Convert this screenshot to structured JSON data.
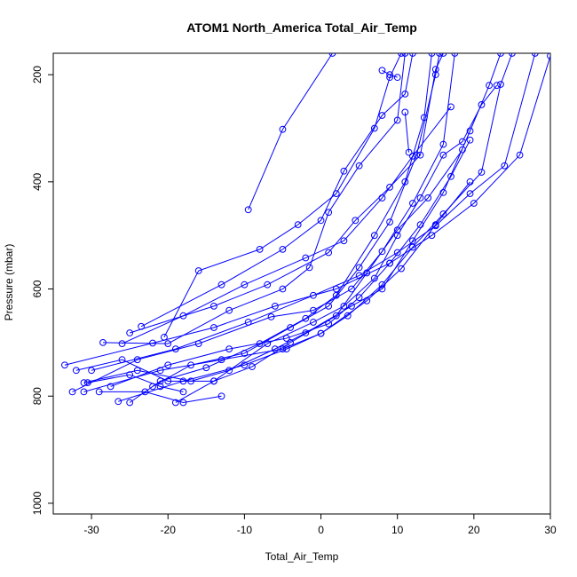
{
  "chart_data": {
    "type": "line",
    "title": "ATOM1 North_America Total_Air_Temp",
    "xlabel": "Total_Air_Temp",
    "ylabel": "Pressure (mbar)",
    "xlim": [
      -35,
      30
    ],
    "ylim": [
      1020,
      160
    ],
    "y_axis_inverted": true,
    "x_ticks": [
      -30,
      -20,
      -10,
      0,
      10,
      20,
      30
    ],
    "y_ticks": [
      200,
      400,
      600,
      800,
      1000
    ],
    "color": "#0000ff",
    "marker": "open-circle",
    "grid": false,
    "legend": "none",
    "series": [
      {
        "points": [
          [
            -9.5,
            452
          ],
          [
            -5,
            302
          ],
          [
            1.5,
            160
          ]
        ]
      },
      {
        "points": [
          [
            -33.5,
            742
          ],
          [
            -22,
            701
          ],
          [
            -14,
            672
          ],
          [
            -6,
            632
          ],
          [
            2,
            600
          ],
          [
            9,
            552
          ],
          [
            14.5,
            500
          ],
          [
            20,
            440
          ],
          [
            26,
            350
          ],
          [
            30,
            165
          ]
        ]
      },
      {
        "points": [
          [
            -30,
            752
          ],
          [
            -19,
            712
          ],
          [
            -9.5,
            662
          ],
          [
            -1,
            612
          ],
          [
            5,
            575
          ],
          [
            10,
            532
          ],
          [
            15,
            482
          ],
          [
            19.5,
            422
          ],
          [
            24,
            370
          ],
          [
            28,
            160
          ]
        ]
      },
      {
        "points": [
          [
            -32.5,
            792
          ],
          [
            -24,
            732
          ],
          [
            -16,
            702
          ],
          [
            -6.5,
            652
          ],
          [
            -1,
            640
          ],
          [
            4,
            600
          ],
          [
            8,
            530
          ],
          [
            12,
            440
          ],
          [
            16,
            330
          ],
          [
            17.5,
            160
          ]
        ]
      },
      {
        "points": [
          [
            -27.5,
            782
          ],
          [
            -20,
            742
          ],
          [
            -12,
            712
          ],
          [
            -4.5,
            692
          ],
          [
            1,
            665
          ],
          [
            5,
            616
          ],
          [
            9,
            552
          ],
          [
            13,
            480
          ],
          [
            17,
            390
          ],
          [
            19.5,
            322
          ]
        ]
      },
      {
        "points": [
          [
            -26.5,
            810
          ],
          [
            -18,
            772
          ],
          [
            -10,
            742
          ],
          [
            -4.5,
            712
          ],
          [
            0,
            683
          ],
          [
            6,
            622
          ],
          [
            10.5,
            562
          ],
          [
            15,
            480
          ],
          [
            19.5,
            400
          ]
        ]
      },
      {
        "points": [
          [
            -31,
            792
          ],
          [
            -21,
            752
          ],
          [
            -13,
            732
          ],
          [
            -5,
            712
          ],
          [
            0,
            683
          ],
          [
            3.5,
            650
          ],
          [
            8,
            592
          ],
          [
            12,
            522
          ],
          [
            16,
            460
          ],
          [
            21,
            382
          ],
          [
            23.5,
            218
          ],
          [
            25,
            160
          ]
        ]
      },
      {
        "points": [
          [
            -26,
            702
          ],
          [
            -18,
            650
          ],
          [
            -10,
            592
          ],
          [
            -2,
            542
          ],
          [
            3,
            510
          ],
          [
            8,
            430
          ],
          [
            12,
            352
          ],
          [
            17,
            260
          ]
        ]
      },
      {
        "points": [
          [
            -20.5,
            690
          ],
          [
            -16,
            566
          ],
          [
            -8,
            526
          ],
          [
            -3,
            480
          ],
          [
            2,
            422
          ],
          [
            7,
            300
          ],
          [
            9,
            205
          ],
          [
            10.5,
            160
          ]
        ]
      },
      {
        "points": [
          [
            -25,
            682
          ],
          [
            -14,
            632
          ],
          [
            -7,
            592
          ],
          [
            1,
            532
          ],
          [
            4.5,
            472
          ],
          [
            9,
            410
          ],
          [
            13,
            350
          ],
          [
            15,
            190
          ],
          [
            16,
            160
          ]
        ]
      },
      {
        "points": [
          [
            -23.5,
            670
          ],
          [
            -13,
            592
          ],
          [
            -5,
            526
          ],
          [
            0,
            472
          ],
          [
            3,
            380
          ],
          [
            8,
            276
          ],
          [
            11,
            236
          ],
          [
            12,
            160
          ]
        ]
      },
      {
        "points": [
          [
            -25,
            812
          ],
          [
            -21,
            772
          ],
          [
            -15,
            747
          ],
          [
            -8,
            702
          ],
          [
            -2,
            655
          ],
          [
            2,
            612
          ],
          [
            7,
            500
          ],
          [
            11,
            400
          ],
          [
            13.5,
            280
          ],
          [
            14.5,
            160
          ]
        ]
      },
      {
        "points": [
          [
            -19,
            812
          ],
          [
            -14,
            772
          ],
          [
            -7,
            702
          ],
          [
            -1,
            662
          ],
          [
            3,
            632
          ],
          [
            7,
            580
          ],
          [
            10,
            500
          ],
          [
            13,
            430
          ],
          [
            16,
            350
          ],
          [
            18.5,
            325
          ],
          [
            21,
            256
          ],
          [
            23,
            220
          ]
        ]
      },
      {
        "points": [
          [
            -22,
            782
          ],
          [
            -17,
            742
          ],
          [
            -10,
            720
          ],
          [
            -4,
            672
          ],
          [
            1,
            632
          ],
          [
            5,
            560
          ],
          [
            9,
            475
          ],
          [
            12.5,
            350
          ],
          [
            15,
            200
          ],
          [
            15.5,
            160
          ]
        ]
      },
      {
        "points": [
          [
            -28.5,
            700
          ],
          [
            -20,
            702
          ],
          [
            -12,
            640
          ],
          [
            -5,
            600
          ],
          [
            -1.5,
            560
          ],
          [
            1,
            457
          ],
          [
            5,
            370
          ],
          [
            10,
            285
          ],
          [
            11,
            160
          ]
        ]
      },
      {
        "points": [
          [
            -31,
            775
          ],
          [
            -24,
            752
          ],
          [
            -17,
            772
          ],
          [
            -12,
            752
          ],
          [
            -6,
            712
          ],
          [
            -2,
            682
          ],
          [
            4,
            632
          ],
          [
            8,
            600
          ],
          [
            12,
            510
          ],
          [
            16,
            420
          ],
          [
            19.5,
            305
          ],
          [
            22,
            220
          ],
          [
            23.5,
            160
          ]
        ]
      },
      {
        "points": [
          [
            -32,
            752
          ],
          [
            -26,
            732
          ],
          [
            -20,
            772
          ],
          [
            -14,
            772
          ],
          [
            -9,
            745
          ],
          [
            -4,
            700
          ],
          [
            2,
            650
          ],
          [
            6,
            570
          ],
          [
            10,
            490
          ],
          [
            14,
            430
          ],
          [
            18.5,
            340
          ]
        ]
      },
      {
        "points": [
          [
            -29,
            792
          ],
          [
            -23,
            792
          ],
          [
            -18,
            812
          ],
          [
            -13,
            800
          ]
        ]
      },
      {
        "points": [
          [
            8,
            192
          ],
          [
            9,
            200
          ],
          [
            10,
            205
          ]
        ]
      },
      {
        "points": [
          [
            11,
            270
          ],
          [
            11.5,
            345
          ]
        ]
      },
      {
        "points": [
          [
            -30.5,
            775
          ],
          [
            -25,
            760
          ],
          [
            -21,
            782
          ],
          [
            -18,
            792
          ]
        ]
      }
    ]
  }
}
